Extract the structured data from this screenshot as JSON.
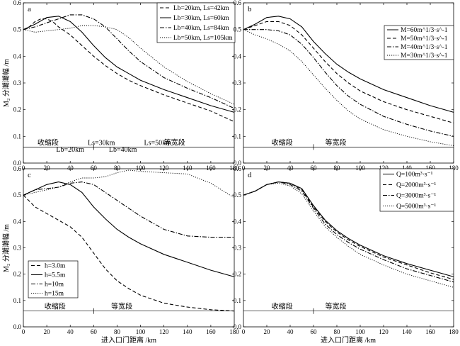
{
  "figure": {
    "y_axis_label": "M₂ 分潮潮幅 /m",
    "x_axis_label": "进入口门距离 /km"
  },
  "chart_data": [
    {
      "panel": "a",
      "type": "line",
      "xlim": [
        0,
        180
      ],
      "ylim": [
        0,
        0.6
      ],
      "xticks": [
        0,
        20,
        40,
        60,
        80,
        100,
        120,
        140,
        160,
        180
      ],
      "yticks": [
        0.0,
        0.1,
        0.2,
        0.3,
        0.4,
        0.5,
        0.6
      ],
      "legend_position": "top-right",
      "series": [
        {
          "name": "Lb=20km, Ls=42km",
          "style": "dashed",
          "x": [
            0,
            5,
            10,
            15,
            20,
            25,
            30,
            40,
            50,
            60,
            70,
            80,
            90,
            100,
            120,
            140,
            160,
            180
          ],
          "y": [
            0.5,
            0.51,
            0.53,
            0.54,
            0.54,
            0.53,
            0.51,
            0.48,
            0.44,
            0.4,
            0.365,
            0.335,
            0.31,
            0.29,
            0.255,
            0.225,
            0.195,
            0.155
          ]
        },
        {
          "name": "Lb=30km, Ls=60km",
          "style": "solid",
          "x": [
            0,
            10,
            20,
            30,
            40,
            50,
            60,
            70,
            80,
            90,
            100,
            120,
            140,
            160,
            180
          ],
          "y": [
            0.5,
            0.52,
            0.545,
            0.55,
            0.53,
            0.49,
            0.44,
            0.395,
            0.36,
            0.335,
            0.31,
            0.275,
            0.245,
            0.215,
            0.19
          ]
        },
        {
          "name": "Lb=40km, Ls=84km",
          "style": "dashdot",
          "x": [
            0,
            10,
            20,
            30,
            40,
            50,
            60,
            70,
            80,
            90,
            100,
            120,
            140,
            160,
            180
          ],
          "y": [
            0.5,
            0.51,
            0.525,
            0.54,
            0.555,
            0.555,
            0.54,
            0.51,
            0.465,
            0.42,
            0.38,
            0.32,
            0.28,
            0.245,
            0.205
          ]
        },
        {
          "name": "Lb=50km, Ls=105km",
          "style": "dotted",
          "x": [
            0,
            10,
            20,
            30,
            40,
            50,
            60,
            70,
            80,
            90,
            100,
            120,
            140,
            160,
            180
          ],
          "y": [
            0.5,
            0.49,
            0.495,
            0.5,
            0.505,
            0.515,
            0.515,
            0.51,
            0.5,
            0.47,
            0.43,
            0.36,
            0.305,
            0.26,
            0.22
          ]
        }
      ],
      "annotations": [
        {
          "text": "收缩段",
          "x": 12,
          "y": 0.06
        },
        {
          "text": "等宽段",
          "x": 120,
          "y": 0.06
        },
        {
          "text": "Ls=30km",
          "x": 55,
          "y": 0.06
        },
        {
          "text": "Ls=50km",
          "x": 103,
          "y": 0.06
        },
        {
          "text": "Lb=20km",
          "x": 28,
          "y": 0.035
        },
        {
          "text": "Lb=40km",
          "x": 73,
          "y": 0.035
        }
      ]
    },
    {
      "panel": "b",
      "type": "line",
      "xlim": [
        0,
        180
      ],
      "ylim": [
        0,
        0.6
      ],
      "xticks": [
        0,
        20,
        40,
        60,
        80,
        100,
        120,
        140,
        160,
        180
      ],
      "yticks": [
        0.0,
        0.1,
        0.2,
        0.3,
        0.4,
        0.5,
        0.6
      ],
      "legend_position": "top-right",
      "series": [
        {
          "name": "M=60m^1/3·s^-1",
          "style": "solid",
          "x": [
            0,
            10,
            20,
            30,
            40,
            50,
            60,
            70,
            80,
            90,
            100,
            120,
            140,
            160,
            180
          ],
          "y": [
            0.5,
            0.52,
            0.545,
            0.55,
            0.54,
            0.51,
            0.455,
            0.41,
            0.37,
            0.34,
            0.315,
            0.275,
            0.245,
            0.215,
            0.19
          ]
        },
        {
          "name": "M=50m^1/3·s^-1",
          "style": "dashed",
          "x": [
            0,
            10,
            20,
            30,
            40,
            50,
            60,
            70,
            80,
            90,
            100,
            120,
            140,
            160,
            180
          ],
          "y": [
            0.5,
            0.515,
            0.53,
            0.53,
            0.515,
            0.48,
            0.43,
            0.38,
            0.335,
            0.3,
            0.27,
            0.23,
            0.2,
            0.175,
            0.15
          ]
        },
        {
          "name": "M=40m^1/3·s^-1",
          "style": "dashdot",
          "x": [
            0,
            10,
            20,
            30,
            40,
            50,
            60,
            70,
            80,
            90,
            100,
            120,
            140,
            160,
            180
          ],
          "y": [
            0.5,
            0.5,
            0.5,
            0.495,
            0.48,
            0.445,
            0.395,
            0.34,
            0.29,
            0.25,
            0.22,
            0.175,
            0.145,
            0.12,
            0.1
          ]
        },
        {
          "name": "M=30m^1/3·s^-1",
          "style": "dotted",
          "x": [
            0,
            10,
            20,
            30,
            40,
            50,
            60,
            70,
            80,
            90,
            100,
            120,
            140,
            160,
            180
          ],
          "y": [
            0.5,
            0.48,
            0.465,
            0.445,
            0.42,
            0.38,
            0.33,
            0.28,
            0.235,
            0.195,
            0.165,
            0.125,
            0.1,
            0.08,
            0.065
          ]
        }
      ],
      "annotations": [
        {
          "text": "收缩段",
          "x": 24,
          "y": 0.06
        },
        {
          "text": "等宽段",
          "x": 70,
          "y": 0.06
        }
      ]
    },
    {
      "panel": "c",
      "type": "line",
      "xlim": [
        0,
        180
      ],
      "ylim": [
        0,
        0.6
      ],
      "xticks": [
        0,
        20,
        40,
        60,
        80,
        100,
        120,
        140,
        160,
        180
      ],
      "yticks": [
        0.0,
        0.1,
        0.2,
        0.3,
        0.4,
        0.5,
        0.6
      ],
      "legend_position": "bottom-left",
      "series": [
        {
          "name": "h=3.0m",
          "style": "dashed",
          "x": [
            0,
            10,
            20,
            30,
            40,
            50,
            60,
            70,
            80,
            90,
            100,
            120,
            140,
            160,
            180
          ],
          "y": [
            0.5,
            0.455,
            0.43,
            0.405,
            0.38,
            0.34,
            0.28,
            0.22,
            0.175,
            0.145,
            0.12,
            0.09,
            0.075,
            0.065,
            0.06
          ]
        },
        {
          "name": "h=5.5m",
          "style": "solid",
          "x": [
            0,
            10,
            20,
            30,
            40,
            50,
            60,
            70,
            80,
            90,
            100,
            120,
            140,
            160,
            180
          ],
          "y": [
            0.5,
            0.52,
            0.54,
            0.55,
            0.54,
            0.51,
            0.455,
            0.41,
            0.37,
            0.34,
            0.315,
            0.275,
            0.245,
            0.215,
            0.19
          ]
        },
        {
          "name": "h=10m",
          "style": "dashdot",
          "x": [
            0,
            10,
            20,
            30,
            40,
            50,
            60,
            70,
            80,
            90,
            100,
            120,
            140,
            160,
            180
          ],
          "y": [
            0.5,
            0.52,
            0.525,
            0.53,
            0.545,
            0.55,
            0.54,
            0.51,
            0.48,
            0.45,
            0.42,
            0.37,
            0.345,
            0.34,
            0.34
          ]
        },
        {
          "name": "h=15m",
          "style": "dotted",
          "x": [
            0,
            10,
            20,
            30,
            40,
            50,
            60,
            70,
            80,
            90,
            100,
            120,
            140,
            160,
            180
          ],
          "y": [
            0.5,
            0.51,
            0.52,
            0.53,
            0.55,
            0.565,
            0.565,
            0.57,
            0.585,
            0.595,
            0.59,
            0.585,
            0.58,
            0.545,
            0.49
          ]
        }
      ],
      "annotations": [
        {
          "text": "收缩段",
          "x": 18,
          "y": 0.06
        },
        {
          "text": "等宽段",
          "x": 75,
          "y": 0.06
        }
      ]
    },
    {
      "panel": "d",
      "type": "line",
      "xlim": [
        0,
        180
      ],
      "ylim": [
        0,
        0.6
      ],
      "xticks": [
        0,
        20,
        40,
        60,
        80,
        100,
        120,
        140,
        160,
        180
      ],
      "yticks": [
        0.0,
        0.1,
        0.2,
        0.3,
        0.4,
        0.5,
        0.6
      ],
      "legend_position": "top-right",
      "series": [
        {
          "name": "Q=100m³·s⁻¹",
          "style": "solid",
          "x": [
            0,
            10,
            20,
            30,
            40,
            50,
            60,
            70,
            80,
            90,
            100,
            120,
            140,
            160,
            180
          ],
          "y": [
            0.5,
            0.515,
            0.54,
            0.55,
            0.545,
            0.525,
            0.46,
            0.405,
            0.365,
            0.335,
            0.31,
            0.27,
            0.24,
            0.215,
            0.19
          ]
        },
        {
          "name": "Q=2000m³·s⁻¹",
          "style": "dashed",
          "x": [
            0,
            10,
            20,
            30,
            40,
            50,
            60,
            70,
            80,
            90,
            100,
            120,
            140,
            160,
            180
          ],
          "y": [
            0.5,
            0.515,
            0.54,
            0.55,
            0.545,
            0.52,
            0.455,
            0.4,
            0.36,
            0.33,
            0.305,
            0.265,
            0.235,
            0.205,
            0.18
          ]
        },
        {
          "name": "Q=3000m³·s⁻¹",
          "style": "dashdot",
          "x": [
            0,
            10,
            20,
            30,
            40,
            50,
            60,
            70,
            80,
            90,
            100,
            120,
            140,
            160,
            180
          ],
          "y": [
            0.5,
            0.515,
            0.54,
            0.55,
            0.54,
            0.515,
            0.45,
            0.39,
            0.35,
            0.32,
            0.295,
            0.255,
            0.22,
            0.195,
            0.17
          ]
        },
        {
          "name": "Q=5000m³·s⁻¹",
          "style": "dotted",
          "x": [
            0,
            10,
            20,
            30,
            40,
            50,
            60,
            70,
            80,
            90,
            100,
            120,
            140,
            160,
            180
          ],
          "y": [
            0.5,
            0.515,
            0.54,
            0.545,
            0.535,
            0.505,
            0.44,
            0.38,
            0.34,
            0.305,
            0.275,
            0.235,
            0.2,
            0.175,
            0.15
          ]
        }
      ],
      "annotations": [
        {
          "text": "收缩段",
          "x": 24,
          "y": 0.06
        },
        {
          "text": "等宽段",
          "x": 70,
          "y": 0.06
        }
      ]
    }
  ]
}
